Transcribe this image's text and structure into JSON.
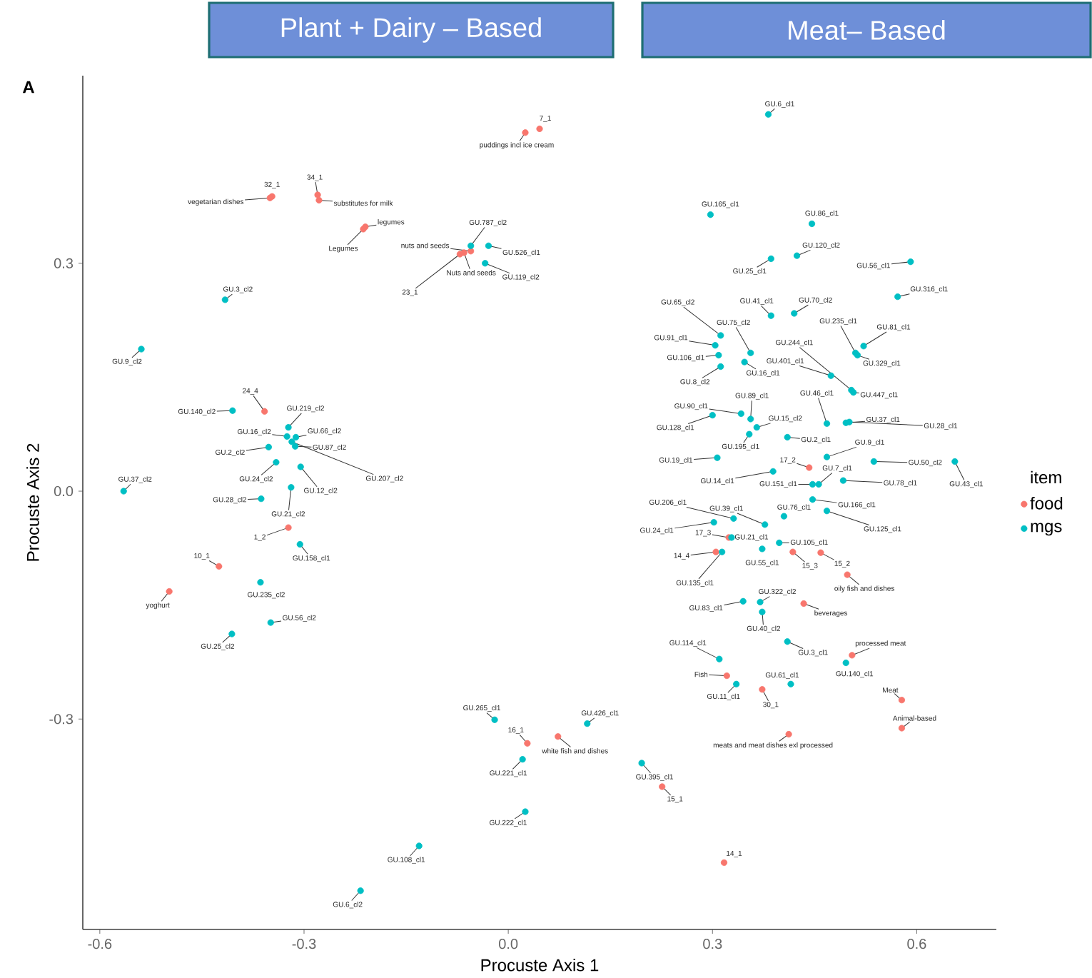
{
  "chart_data": {
    "type": "scatter",
    "xlabel": "Procuste Axis 1",
    "ylabel": "Procuste Axis 2",
    "legend_title": "item",
    "legend": "right",
    "marker": "circle",
    "grid": false,
    "xlim": [
      -0.625,
      0.717
    ],
    "ylim": [
      -0.577,
      0.547
    ],
    "xticks": [
      -0.6,
      -0.3,
      {
        "value": 0,
        "label": "0.0"
      },
      0.3,
      0.6
    ],
    "yticks": [
      -0.3,
      {
        "value": 0,
        "label": "0.0"
      },
      0.3
    ],
    "series": [
      {
        "name": "food",
        "color": "#f8766d",
        "x": [
          0.025,
          0.046,
          -0.347,
          -0.35,
          -0.28,
          -0.278,
          -0.21,
          -0.213,
          -0.055,
          -0.065,
          -0.071,
          -0.358,
          -0.323,
          -0.425,
          -0.498,
          0.442,
          0.324,
          0.305,
          0.418,
          0.459,
          0.498,
          0.434,
          0.505,
          0.321,
          0.373,
          0.578,
          0.578,
          0.412,
          0.226,
          0.317,
          0.028,
          0.073
        ],
        "values": [
          0.472,
          0.477,
          0.388,
          0.386,
          0.39,
          0.383,
          0.348,
          0.345,
          0.316,
          0.314,
          0.312,
          0.105,
          -0.048,
          -0.099,
          -0.132,
          0.031,
          -0.061,
          -0.08,
          -0.08,
          -0.081,
          -0.11,
          -0.148,
          -0.216,
          -0.243,
          -0.261,
          -0.275,
          -0.312,
          -0.32,
          -0.389,
          -0.489,
          -0.332,
          -0.323
        ]
      },
      {
        "name": "mgs",
        "color": "#00bfc4",
        "x": [
          -0.055,
          -0.029,
          -0.034,
          -0.416,
          -0.539,
          -0.405,
          -0.323,
          -0.325,
          -0.312,
          -0.313,
          -0.318,
          -0.352,
          -0.341,
          -0.305,
          -0.565,
          -0.319,
          -0.363,
          -0.306,
          -0.364,
          -0.349,
          -0.406,
          -0.02,
          0.021,
          0.025,
          -0.131,
          -0.217,
          0.116,
          0.196,
          0.382,
          0.297,
          0.446,
          0.424,
          0.386,
          0.591,
          0.572,
          0.386,
          0.42,
          0.312,
          0.356,
          0.304,
          0.309,
          0.312,
          0.347,
          0.51,
          0.522,
          0.513,
          0.504,
          0.474,
          0.507,
          0.468,
          0.356,
          0.342,
          0.3,
          0.365,
          0.354,
          0.41,
          0.496,
          0.501,
          0.307,
          0.468,
          0.537,
          0.656,
          0.389,
          0.456,
          0.447,
          0.492,
          0.447,
          0.468,
          0.405,
          0.377,
          0.331,
          0.302,
          0.328,
          0.373,
          0.398,
          0.314,
          0.345,
          0.37,
          0.373,
          0.41,
          0.31,
          0.496,
          0.335,
          0.415
        ],
        "values": [
          0.323,
          0.323,
          0.3,
          0.252,
          0.187,
          0.106,
          0.084,
          0.072,
          0.071,
          0.059,
          0.065,
          0.058,
          0.038,
          0.032,
          0.0,
          0.005,
          -0.01,
          -0.07,
          -0.12,
          -0.173,
          -0.188,
          -0.301,
          -0.353,
          -0.422,
          -0.467,
          -0.526,
          -0.306,
          -0.358,
          0.496,
          0.364,
          0.352,
          0.31,
          0.306,
          0.302,
          0.256,
          0.231,
          0.234,
          0.205,
          0.182,
          0.192,
          0.179,
          0.164,
          0.17,
          0.182,
          0.191,
          0.179,
          0.133,
          0.152,
          0.13,
          0.089,
          0.095,
          0.102,
          0.1,
          0.084,
          0.075,
          0.071,
          0.09,
          0.091,
          0.044,
          0.045,
          0.039,
          0.039,
          0.026,
          0.009,
          0.009,
          0.014,
          -0.011,
          -0.026,
          -0.033,
          -0.044,
          -0.036,
          -0.041,
          -0.061,
          -0.076,
          -0.068,
          -0.08,
          -0.145,
          -0.146,
          -0.159,
          -0.198,
          -0.221,
          -0.226,
          -0.254,
          -0.254
        ]
      }
    ],
    "annotations": [
      "Plant  + Dairy – Based",
      "Meat– Based",
      "A",
      {
        "text": "puddings incl ice cream",
        "x": 0.025,
        "y": 0.472
      },
      {
        "text": "7_1",
        "x": 0.046,
        "y": 0.477
      },
      {
        "text": "32_1",
        "x": -0.347,
        "y": 0.388
      },
      {
        "text": "vegetarian dishes",
        "x": -0.35,
        "y": 0.386
      },
      {
        "text": "34_1",
        "x": -0.28,
        "y": 0.39
      },
      {
        "text": "substitutes for milk",
        "x": -0.278,
        "y": 0.383
      },
      {
        "text": "legumes",
        "x": -0.21,
        "y": 0.348
      },
      {
        "text": "Legumes",
        "x": -0.213,
        "y": 0.345
      },
      {
        "text": "nuts and seeds",
        "x": -0.055,
        "y": 0.316
      },
      {
        "text": "Nuts and seeds",
        "x": -0.065,
        "y": 0.314
      },
      {
        "text": "23_1",
        "x": -0.071,
        "y": 0.312
      },
      {
        "text": "24_4",
        "x": -0.358,
        "y": 0.105
      },
      {
        "text": "1_2",
        "x": -0.323,
        "y": -0.048
      },
      {
        "text": "10_1",
        "x": -0.425,
        "y": -0.099
      },
      {
        "text": "yoghurt",
        "x": -0.498,
        "y": -0.132
      },
      {
        "text": "17_2",
        "x": 0.442,
        "y": 0.031
      },
      {
        "text": "17_3",
        "x": 0.324,
        "y": -0.061
      },
      {
        "text": "14_4",
        "x": 0.305,
        "y": -0.08
      },
      {
        "text": "15_3",
        "x": 0.418,
        "y": -0.08
      },
      {
        "text": "15_2",
        "x": 0.459,
        "y": -0.081
      },
      {
        "text": "oily fish and dishes",
        "x": 0.498,
        "y": -0.11
      },
      {
        "text": "beverages",
        "x": 0.434,
        "y": -0.148
      },
      {
        "text": "processed meat",
        "x": 0.505,
        "y": -0.216
      },
      {
        "text": "Fish",
        "x": 0.321,
        "y": -0.243
      },
      {
        "text": "30_1",
        "x": 0.373,
        "y": -0.261
      },
      {
        "text": "Meat",
        "x": 0.578,
        "y": -0.275
      },
      {
        "text": "Animal-based",
        "x": 0.578,
        "y": -0.312
      },
      {
        "text": "meats and meat dishes exl processed",
        "x": 0.412,
        "y": -0.32
      },
      {
        "text": "15_1",
        "x": 0.226,
        "y": -0.389
      },
      {
        "text": "14_1",
        "x": 0.317,
        "y": -0.489
      },
      {
        "text": "16_1",
        "x": 0.028,
        "y": -0.332
      },
      {
        "text": "white fish and dishes",
        "x": 0.073,
        "y": -0.323
      },
      {
        "text": "GU.787_cl2",
        "x": -0.055,
        "y": 0.323
      },
      {
        "text": "GU.526_cl1",
        "x": -0.029,
        "y": 0.323
      },
      {
        "text": "GU.119_cl2",
        "x": -0.034,
        "y": 0.3
      },
      {
        "text": "GU.3_cl2",
        "x": -0.416,
        "y": 0.252
      },
      {
        "text": "GU.9_cl2",
        "x": -0.539,
        "y": 0.187
      },
      {
        "text": "GU.140_cl2",
        "x": -0.405,
        "y": 0.106
      },
      {
        "text": "GU.219_cl2",
        "x": -0.323,
        "y": 0.084
      },
      {
        "text": "GU.16_cl2",
        "x": -0.325,
        "y": 0.072
      },
      {
        "text": "GU.66_cl2",
        "x": -0.312,
        "y": 0.071
      },
      {
        "text": "GU.87_cl2",
        "x": -0.313,
        "y": 0.059
      },
      {
        "text": "GU.207_cl2",
        "x": -0.318,
        "y": 0.065
      },
      {
        "text": "GU.2_cl2",
        "x": -0.352,
        "y": 0.058
      },
      {
        "text": "GU.24_cl2",
        "x": -0.341,
        "y": 0.038
      },
      {
        "text": "GU.12_cl2",
        "x": -0.305,
        "y": 0.032
      },
      {
        "text": "GU.37_cl2",
        "x": -0.565,
        "y": 0.0
      },
      {
        "text": "GU.21_cl2",
        "x": -0.319,
        "y": 0.005
      },
      {
        "text": "GU.28_cl2",
        "x": -0.363,
        "y": -0.01
      },
      {
        "text": "GU.158_cl1",
        "x": -0.306,
        "y": -0.07
      },
      {
        "text": "GU.235_cl2",
        "x": -0.364,
        "y": -0.12
      },
      {
        "text": "GU.56_cl2",
        "x": -0.349,
        "y": -0.173
      },
      {
        "text": "GU.25_cl2",
        "x": -0.406,
        "y": -0.188
      },
      {
        "text": "GU.265_cl1",
        "x": -0.02,
        "y": -0.301
      },
      {
        "text": "GU.221_cl1",
        "x": 0.021,
        "y": -0.353
      },
      {
        "text": "GU.222_cl1",
        "x": 0.025,
        "y": -0.422
      },
      {
        "text": "GU.108_cl1",
        "x": -0.131,
        "y": -0.467
      },
      {
        "text": "GU.6_cl2",
        "x": -0.217,
        "y": -0.526
      },
      {
        "text": "GU.426_cl1",
        "x": 0.116,
        "y": -0.306
      },
      {
        "text": "GU.395_cl1",
        "x": 0.196,
        "y": -0.358
      },
      {
        "text": "GU.6_cl1",
        "x": 0.382,
        "y": 0.496
      },
      {
        "text": "GU.165_cl1",
        "x": 0.297,
        "y": 0.364
      },
      {
        "text": "GU.86_cl1",
        "x": 0.446,
        "y": 0.352
      },
      {
        "text": "GU.120_cl2",
        "x": 0.424,
        "y": 0.31
      },
      {
        "text": "GU.25_cl1",
        "x": 0.386,
        "y": 0.306
      },
      {
        "text": "GU.56_cl1",
        "x": 0.591,
        "y": 0.302
      },
      {
        "text": "GU.316_cl1",
        "x": 0.572,
        "y": 0.256
      },
      {
        "text": "GU.41_cl1",
        "x": 0.386,
        "y": 0.231
      },
      {
        "text": "GU.70_cl2",
        "x": 0.42,
        "y": 0.234
      },
      {
        "text": "GU.65_cl2",
        "x": 0.312,
        "y": 0.205
      },
      {
        "text": "GU.75_cl2",
        "x": 0.356,
        "y": 0.182
      },
      {
        "text": "GU.91_cl1",
        "x": 0.304,
        "y": 0.192
      },
      {
        "text": "GU.106_cl1",
        "x": 0.309,
        "y": 0.179
      },
      {
        "text": "GU.8_cl2",
        "x": 0.312,
        "y": 0.164
      },
      {
        "text": "GU.16_cl1",
        "x": 0.347,
        "y": 0.17
      },
      {
        "text": "GU.235_cl1",
        "x": 0.51,
        "y": 0.182
      },
      {
        "text": "GU.81_cl1",
        "x": 0.522,
        "y": 0.191
      },
      {
        "text": "GU.329_cl1",
        "x": 0.513,
        "y": 0.179
      },
      {
        "text": "GU.244_cl1",
        "x": 0.504,
        "y": 0.133
      },
      {
        "text": "GU.401_cl1",
        "x": 0.474,
        "y": 0.152
      },
      {
        "text": "GU.447_cl1",
        "x": 0.507,
        "y": 0.13
      },
      {
        "text": "GU.46_cl1",
        "x": 0.468,
        "y": 0.089
      },
      {
        "text": "GU.89_cl1",
        "x": 0.356,
        "y": 0.095
      },
      {
        "text": "GU.90_cl1",
        "x": 0.342,
        "y": 0.102
      },
      {
        "text": "GU.128_cl1",
        "x": 0.3,
        "y": 0.1
      },
      {
        "text": "GU.15_cl2",
        "x": 0.365,
        "y": 0.084
      },
      {
        "text": "GU.195_cl1",
        "x": 0.354,
        "y": 0.075
      },
      {
        "text": "GU.2_cl1",
        "x": 0.41,
        "y": 0.071
      },
      {
        "text": "GU.37_cl1",
        "x": 0.496,
        "y": 0.09
      },
      {
        "text": "GU.28_cl1",
        "x": 0.501,
        "y": 0.091
      },
      {
        "text": "GU.19_cl1",
        "x": 0.307,
        "y": 0.044
      },
      {
        "text": "GU.9_cl1",
        "x": 0.468,
        "y": 0.045
      },
      {
        "text": "GU.50_cl2",
        "x": 0.537,
        "y": 0.039
      },
      {
        "text": "GU.43_cl1",
        "x": 0.656,
        "y": 0.039
      },
      {
        "text": "GU.14_cl1",
        "x": 0.389,
        "y": 0.026
      },
      {
        "text": "GU.7_cl1",
        "x": 0.456,
        "y": 0.009
      },
      {
        "text": "GU.151_cl1",
        "x": 0.447,
        "y": 0.009
      },
      {
        "text": "GU.78_cl1",
        "x": 0.492,
        "y": 0.014
      },
      {
        "text": "GU.166_cl1",
        "x": 0.447,
        "y": -0.011
      },
      {
        "text": "GU.125_cl1",
        "x": 0.468,
        "y": -0.026
      },
      {
        "text": "GU.76_cl1",
        "x": 0.405,
        "y": -0.033
      },
      {
        "text": "GU.39_cl1",
        "x": 0.377,
        "y": -0.044
      },
      {
        "text": "GU.206_cl1",
        "x": 0.331,
        "y": -0.036
      },
      {
        "text": "GU.24_cl1",
        "x": 0.302,
        "y": -0.041
      },
      {
        "text": "GU.21_cl1",
        "x": 0.328,
        "y": -0.061
      },
      {
        "text": "GU.55_cl1",
        "x": 0.373,
        "y": -0.076
      },
      {
        "text": "GU.105_cl1",
        "x": 0.398,
        "y": -0.068
      },
      {
        "text": "GU.135_cl1",
        "x": 0.314,
        "y": -0.08
      },
      {
        "text": "GU.83_cl1",
        "x": 0.345,
        "y": -0.145
      },
      {
        "text": "GU.322_cl2",
        "x": 0.37,
        "y": -0.146
      },
      {
        "text": "GU.40_cl2",
        "x": 0.373,
        "y": -0.159
      },
      {
        "text": "GU.3_cl1",
        "x": 0.41,
        "y": -0.198
      },
      {
        "text": "GU.114_cl1",
        "x": 0.31,
        "y": -0.221
      },
      {
        "text": "GU.140_cl1",
        "x": 0.496,
        "y": -0.226
      },
      {
        "text": "GU.11_cl1",
        "x": 0.335,
        "y": -0.254
      },
      {
        "text": "GU.61_cl1",
        "x": 0.415,
        "y": -0.254
      }
    ]
  }
}
